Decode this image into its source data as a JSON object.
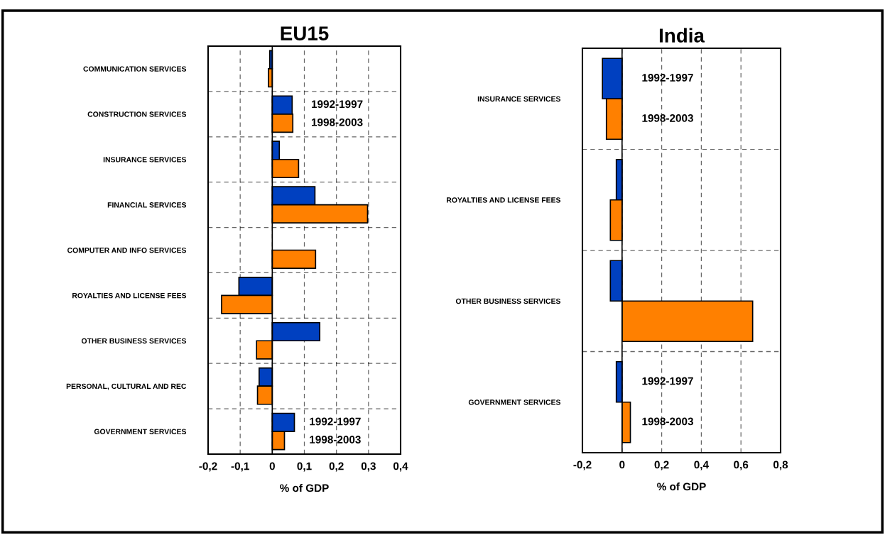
{
  "chart_data": [
    {
      "type": "bar",
      "orientation": "horizontal",
      "title": "EU15",
      "xlabel": "% of GDP",
      "grid": true,
      "categories": [
        "COMMUNICATION SERVICES",
        "CONSTRUCTION SERVICES",
        "INSURANCE SERVICES",
        "FINANCIAL SERVICES",
        "COMPUTER AND INFO SERVICES",
        "ROYALTIES AND LICENSE FEES",
        "OTHER BUSINESS SERVICES",
        "PERSONAL, CULTURAL AND REC",
        "GOVERNMENT SERVICES"
      ],
      "series": [
        {
          "name": "1992-1997",
          "color": "#0040c0",
          "values": [
            -0.008,
            0.062,
            0.022,
            0.133,
            null,
            -0.104,
            0.148,
            -0.041,
            0.069
          ]
        },
        {
          "name": "1998-2003",
          "color": "#ff8000",
          "values": [
            -0.012,
            0.064,
            0.082,
            0.297,
            0.135,
            -0.158,
            -0.049,
            -0.046,
            0.038
          ]
        }
      ],
      "xlim": [
        -0.2,
        0.4
      ],
      "xticks": [
        {
          "value": -0.2,
          "label": "-0,2"
        },
        {
          "value": -0.1,
          "label": "-0,1"
        },
        0,
        {
          "value": 0.1,
          "label": "0,1"
        },
        {
          "value": 0.2,
          "label": "0,2"
        },
        {
          "value": 0.3,
          "label": "0,3"
        },
        {
          "value": 0.4,
          "label": "0,4"
        }
      ]
    },
    {
      "type": "bar",
      "orientation": "horizontal",
      "title": "India",
      "xlabel": "% of GDP",
      "grid": true,
      "categories": [
        "INSURANCE SERVICES",
        "ROYALTIES AND LICENSE FEES",
        "OTHER BUSINESS SERVICES",
        "GOVERNMENT SERVICES"
      ],
      "series": [
        {
          "name": "1992-1997",
          "color": "#0040c0",
          "values": [
            -0.099,
            -0.029,
            -0.059,
            -0.029
          ]
        },
        {
          "name": "1998-2003",
          "color": "#ff8000",
          "values": [
            -0.079,
            -0.059,
            0.659,
            0.042
          ]
        }
      ],
      "xlim": [
        -0.2,
        0.8
      ],
      "xticks": [
        {
          "value": -0.2,
          "label": "-0,2"
        },
        0,
        {
          "value": 0.2,
          "label": "0,2"
        },
        {
          "value": 0.4,
          "label": "0,4"
        },
        {
          "value": 0.6,
          "label": "0,6"
        },
        {
          "value": 0.8,
          "label": "0,8"
        }
      ]
    }
  ]
}
